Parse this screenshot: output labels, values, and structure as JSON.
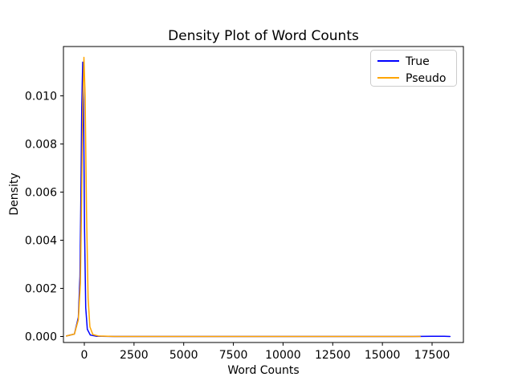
{
  "chart_data": {
    "type": "line",
    "title": "Density Plot of Word Counts",
    "xlabel": "Word Counts",
    "ylabel": "Density",
    "xlim": [
      -1050,
      19075
    ],
    "ylim": [
      -0.00025,
      0.01203
    ],
    "grid": false,
    "legend_position": "upper right",
    "x_ticks": [
      0,
      2500,
      5000,
      7500,
      10000,
      12500,
      15000,
      17500
    ],
    "x_tick_labels": [
      "0",
      "2500",
      "5000",
      "7500",
      "10000",
      "12500",
      "15000",
      "17500"
    ],
    "y_ticks": [
      0.0,
      0.002,
      0.004,
      0.006,
      0.008,
      0.01
    ],
    "y_tick_labels": [
      "0.000",
      "0.002",
      "0.004",
      "0.006",
      "0.008",
      "0.010"
    ],
    "series": [
      {
        "name": "True",
        "color": "#0000ff",
        "peak": {
          "x": -80,
          "y": 0.0114
        },
        "points": [
          [
            -900,
            2e-05
          ],
          [
            -500,
            0.0001
          ],
          [
            -300,
            0.0008
          ],
          [
            -220,
            0.0025
          ],
          [
            -170,
            0.006
          ],
          [
            -130,
            0.0095
          ],
          [
            -80,
            0.0114
          ],
          [
            -40,
            0.0098
          ],
          [
            10,
            0.0045
          ],
          [
            70,
            0.0012
          ],
          [
            150,
            0.0003
          ],
          [
            300,
            6e-05
          ],
          [
            600,
            1e-05
          ],
          [
            1500,
            0
          ],
          [
            2500,
            0
          ],
          [
            5000,
            0
          ],
          [
            7500,
            0
          ],
          [
            10000,
            0
          ],
          [
            12500,
            0
          ],
          [
            15000,
            0
          ],
          [
            16500,
            0
          ],
          [
            17500,
            1e-05
          ],
          [
            18100,
            1e-05
          ],
          [
            18400,
            0
          ]
        ]
      },
      {
        "name": "Pseudo",
        "color": "#ffa500",
        "peak": {
          "x": -20,
          "y": 0.0116
        },
        "points": [
          [
            -900,
            2e-05
          ],
          [
            -500,
            0.0001
          ],
          [
            -300,
            0.0007
          ],
          [
            -200,
            0.0022
          ],
          [
            -140,
            0.0055
          ],
          [
            -80,
            0.0095
          ],
          [
            -20,
            0.0116
          ],
          [
            40,
            0.01
          ],
          [
            110,
            0.0052
          ],
          [
            190,
            0.0016
          ],
          [
            280,
            0.0004
          ],
          [
            430,
            8e-05
          ],
          [
            700,
            2e-05
          ],
          [
            1500,
            0
          ],
          [
            2500,
            0
          ],
          [
            5000,
            0
          ],
          [
            7500,
            0
          ],
          [
            10000,
            0
          ],
          [
            12500,
            0
          ],
          [
            15000,
            0
          ],
          [
            16200,
            0
          ],
          [
            16900,
            0
          ]
        ]
      }
    ]
  }
}
